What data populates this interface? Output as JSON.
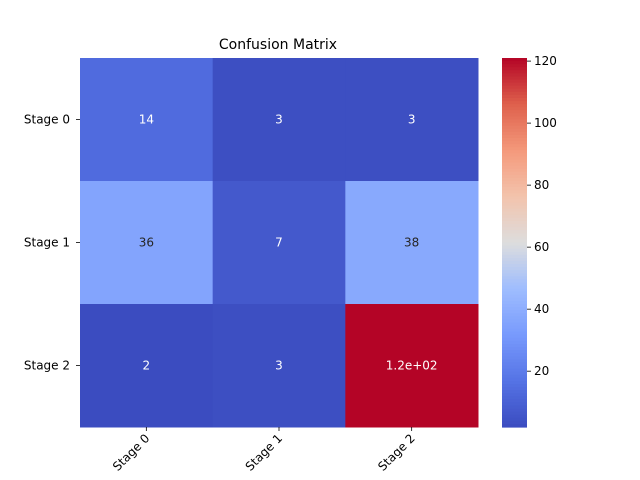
{
  "chart_data": {
    "type": "heatmap",
    "title": "Confusion Matrix",
    "xlabel": "",
    "ylabel": "",
    "x_categories": [
      "Stage 0",
      "Stage 1",
      "Stage 2"
    ],
    "y_categories": [
      "Stage 0",
      "Stage 1",
      "Stage 2"
    ],
    "values": [
      [
        14,
        3,
        3
      ],
      [
        36,
        7,
        38
      ],
      [
        2,
        3,
        121
      ]
    ],
    "annotations": [
      [
        "14",
        "3",
        "3"
      ],
      [
        "36",
        "7",
        "38"
      ],
      [
        "2",
        "3",
        "1.2e+02"
      ]
    ],
    "colormap": "coolwarm",
    "colorbar": {
      "min": 2,
      "max": 121,
      "ticks": [
        20,
        40,
        60,
        80,
        100,
        120
      ]
    },
    "x_tick_rotation_deg": 45
  }
}
